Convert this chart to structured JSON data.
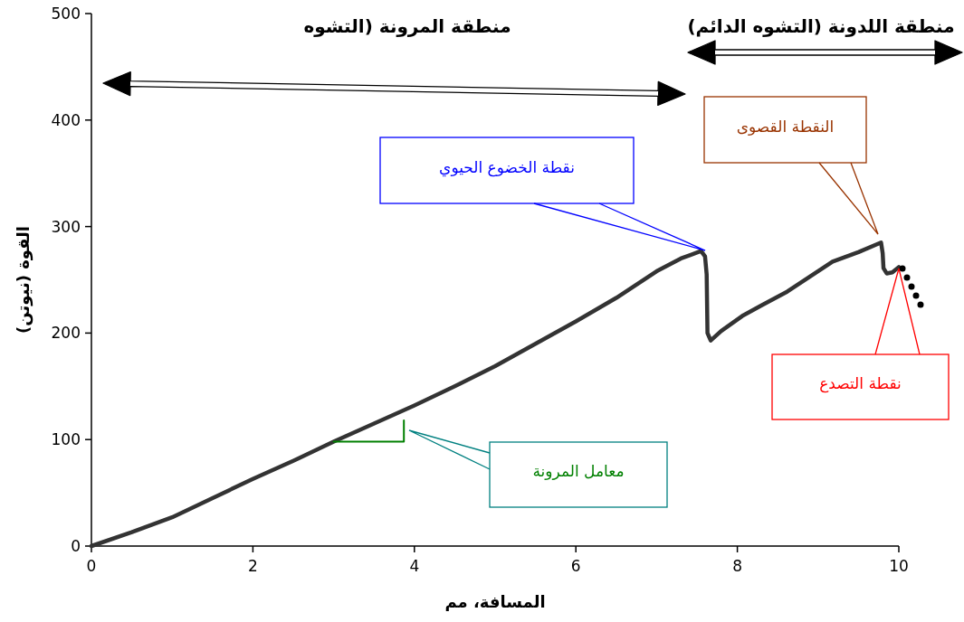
{
  "chart_data": {
    "type": "line",
    "xlabel": "المسافة، مم",
    "ylabel": "القوة (نيوتن)",
    "xlim": [
      0,
      10
    ],
    "ylim": [
      0,
      500
    ],
    "xticks": [
      0,
      2,
      4,
      6,
      8,
      10
    ],
    "yticks": [
      0,
      100,
      200,
      300,
      400,
      500
    ],
    "grid": false,
    "marker": "none",
    "line_style": "solid",
    "series": [
      {
        "color": "#333333",
        "x": [
          0,
          0.5,
          1,
          1.5,
          2,
          2.5,
          3,
          3.5,
          4,
          4.5,
          5,
          5.5,
          6,
          6.5,
          7,
          7.3,
          7.55,
          7.6,
          7.62,
          7.63,
          7.67,
          7.8,
          8.06,
          8.3,
          8.62,
          8.9,
          9.18,
          9.5,
          9.78,
          9.8,
          9.81,
          9.85,
          9.92,
          10
        ],
        "values": [
          0,
          13,
          27,
          45,
          63,
          80,
          98,
          115,
          132,
          150,
          169,
          190,
          211,
          233,
          258,
          270,
          277,
          272,
          255,
          200,
          193,
          202,
          216,
          226,
          239,
          253,
          267,
          276,
          285,
          275,
          261,
          256,
          257,
          262
        ]
      },
      {
        "color": "#008000",
        "x": [
          3,
          3.87,
          3.87
        ],
        "values": [
          98,
          98,
          118
        ]
      }
    ],
    "annotations": [
      "منطقة المرونة  (التشوه",
      "منطقة اللدونة (التشوه الدائم)",
      "نقطة الخضوع الحيوي",
      "النقطة القصوى",
      "نقطة التصدع",
      "معامل المرونة"
    ]
  }
}
